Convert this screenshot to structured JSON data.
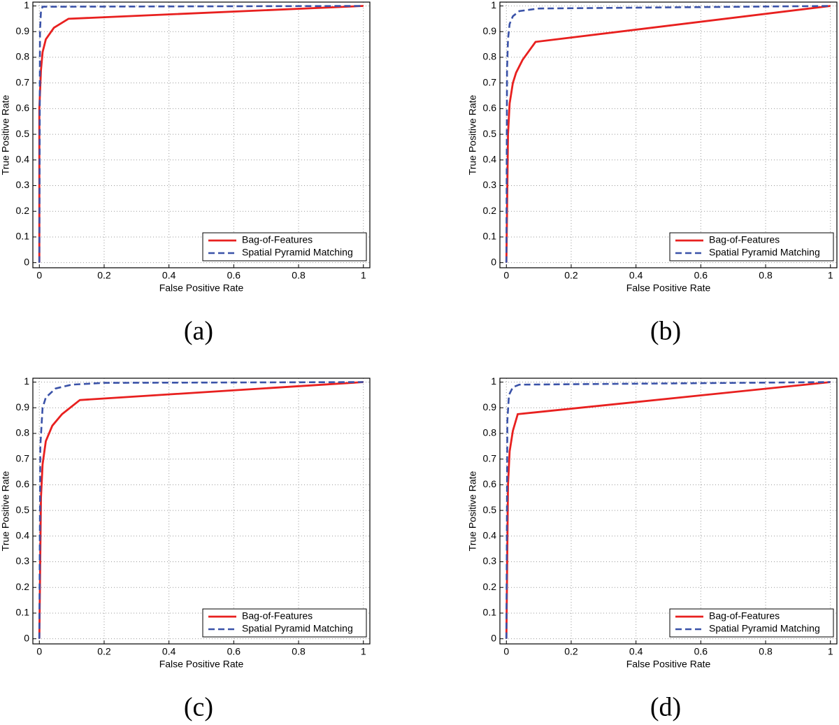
{
  "chart_data": [
    {
      "type": "line",
      "caption": "(a)",
      "x_label": "False Positive Rate",
      "y_label": "True Positive Rate",
      "xlim": [
        -0.02,
        1.02
      ],
      "ylim": [
        -0.02,
        1.015
      ],
      "xticks": [
        0,
        0.2,
        0.4,
        0.6,
        0.8,
        1
      ],
      "yticks": [
        0,
        0.1,
        0.2,
        0.3,
        0.4,
        0.5,
        0.6,
        0.7,
        0.8,
        0.9,
        1
      ],
      "grid": true,
      "legend": "lower right",
      "series": [
        {
          "name": "Bag-of-Features",
          "color": "#e8201f",
          "x": [
            0,
            0,
            0.005,
            0.01,
            0.02,
            0.045,
            0.09,
            1
          ],
          "values": [
            0,
            0.6,
            0.75,
            0.82,
            0.87,
            0.915,
            0.95,
            1
          ]
        },
        {
          "name": "Spatial Pyramid Matching",
          "color": "#3a52a8",
          "x": [
            0,
            0.002,
            0.005,
            0.01,
            1
          ],
          "values": [
            0,
            0.9,
            0.98,
            0.997,
            1
          ]
        }
      ]
    },
    {
      "type": "line",
      "caption": "(b)",
      "x_label": "False Positive Rate",
      "y_label": "True Positive Rate",
      "xlim": [
        -0.02,
        1.02
      ],
      "ylim": [
        -0.02,
        1.015
      ],
      "xticks": [
        0,
        0.2,
        0.4,
        0.6,
        0.8,
        1
      ],
      "yticks": [
        0,
        0.1,
        0.2,
        0.3,
        0.4,
        0.5,
        0.6,
        0.7,
        0.8,
        0.9,
        1
      ],
      "grid": true,
      "legend": "lower right",
      "series": [
        {
          "name": "Bag-of-Features",
          "color": "#e8201f",
          "x": [
            0,
            0.005,
            0.01,
            0.02,
            0.03,
            0.05,
            0.09,
            1
          ],
          "values": [
            0,
            0.5,
            0.62,
            0.7,
            0.74,
            0.79,
            0.86,
            1
          ]
        },
        {
          "name": "Spatial Pyramid Matching",
          "color": "#3a52a8",
          "x": [
            0,
            0.002,
            0.005,
            0.01,
            0.02,
            0.04,
            0.1,
            1
          ],
          "values": [
            0,
            0.75,
            0.87,
            0.93,
            0.96,
            0.98,
            0.99,
            1
          ]
        }
      ]
    },
    {
      "type": "line",
      "caption": "(c)",
      "x_label": "False Positive Rate",
      "y_label": "True Positive Rate",
      "xlim": [
        -0.02,
        1.02
      ],
      "ylim": [
        -0.02,
        1.015
      ],
      "xticks": [
        0,
        0.2,
        0.4,
        0.6,
        0.8,
        1
      ],
      "yticks": [
        0,
        0.1,
        0.2,
        0.3,
        0.4,
        0.5,
        0.6,
        0.7,
        0.8,
        0.9,
        1
      ],
      "grid": true,
      "legend": "lower right",
      "series": [
        {
          "name": "Bag-of-Features",
          "color": "#e8201f",
          "x": [
            0,
            0.005,
            0.01,
            0.02,
            0.04,
            0.07,
            0.125,
            1
          ],
          "values": [
            0,
            0.55,
            0.68,
            0.77,
            0.83,
            0.875,
            0.93,
            1
          ]
        },
        {
          "name": "Spatial Pyramid Matching",
          "color": "#3a52a8",
          "x": [
            0,
            0.003,
            0.01,
            0.02,
            0.05,
            0.1,
            0.2,
            1
          ],
          "values": [
            0,
            0.75,
            0.9,
            0.94,
            0.975,
            0.99,
            0.997,
            1
          ]
        }
      ]
    },
    {
      "type": "line",
      "caption": "(d)",
      "x_label": "False Positive Rate",
      "y_label": "True Positive Rate",
      "xlim": [
        -0.02,
        1.02
      ],
      "ylim": [
        -0.02,
        1.015
      ],
      "xticks": [
        0,
        0.2,
        0.4,
        0.6,
        0.8,
        1
      ],
      "yticks": [
        0,
        0.1,
        0.2,
        0.3,
        0.4,
        0.5,
        0.6,
        0.7,
        0.8,
        0.9,
        1
      ],
      "grid": true,
      "legend": "lower right",
      "series": [
        {
          "name": "Bag-of-Features",
          "color": "#e8201f",
          "x": [
            0,
            0.005,
            0.01,
            0.02,
            0.035,
            1
          ],
          "values": [
            0,
            0.6,
            0.73,
            0.81,
            0.875,
            1
          ]
        },
        {
          "name": "Spatial Pyramid Matching",
          "color": "#3a52a8",
          "x": [
            0,
            0.003,
            0.008,
            0.02,
            0.04,
            1
          ],
          "values": [
            0,
            0.85,
            0.95,
            0.98,
            0.99,
            1
          ]
        }
      ]
    }
  ]
}
